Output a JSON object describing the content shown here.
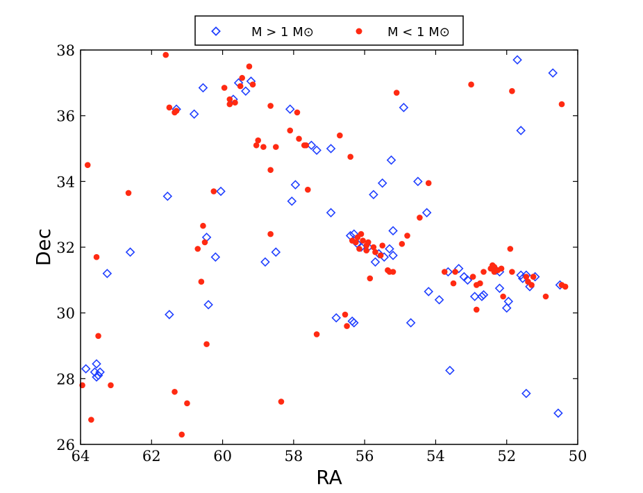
{
  "chart_data": {
    "type": "scatter",
    "xlabel": "RA",
    "ylabel": "Dec",
    "xlim": [
      64,
      50
    ],
    "ylim": [
      26,
      38
    ],
    "xticks": [
      64,
      62,
      60,
      58,
      56,
      54,
      52,
      50
    ],
    "yticks": [
      26,
      28,
      30,
      32,
      34,
      36,
      38
    ],
    "grid": false,
    "legend_position": "top-center, above plot",
    "series": [
      {
        "name": "M > 1 M⊙",
        "marker": "diamond-open",
        "color": "#1f3fff",
        "points": [
          [
            63.85,
            28.3
          ],
          [
            63.6,
            28.2
          ],
          [
            63.55,
            28.05
          ],
          [
            63.5,
            28.1
          ],
          [
            63.45,
            28.2
          ],
          [
            63.55,
            28.45
          ],
          [
            63.25,
            31.2
          ],
          [
            62.6,
            31.85
          ],
          [
            61.55,
            33.55
          ],
          [
            61.5,
            29.95
          ],
          [
            61.3,
            36.2
          ],
          [
            60.8,
            36.05
          ],
          [
            60.55,
            36.85
          ],
          [
            60.45,
            32.3
          ],
          [
            60.4,
            30.25
          ],
          [
            60.2,
            31.7
          ],
          [
            60.05,
            33.7
          ],
          [
            59.7,
            36.5
          ],
          [
            59.55,
            37.0
          ],
          [
            59.35,
            36.75
          ],
          [
            59.2,
            37.05
          ],
          [
            58.8,
            31.55
          ],
          [
            58.5,
            31.85
          ],
          [
            58.1,
            36.2
          ],
          [
            58.05,
            33.4
          ],
          [
            57.95,
            33.9
          ],
          [
            57.5,
            35.1
          ],
          [
            57.35,
            34.95
          ],
          [
            56.95,
            35.0
          ],
          [
            56.95,
            33.05
          ],
          [
            56.8,
            29.85
          ],
          [
            56.4,
            32.35
          ],
          [
            56.3,
            32.4
          ],
          [
            56.35,
            29.75
          ],
          [
            56.3,
            29.7
          ],
          [
            56.2,
            32.1
          ],
          [
            56.1,
            32.0
          ],
          [
            55.9,
            32.0
          ],
          [
            55.75,
            33.6
          ],
          [
            55.7,
            31.55
          ],
          [
            55.6,
            31.8
          ],
          [
            55.5,
            33.95
          ],
          [
            55.45,
            31.7
          ],
          [
            55.3,
            31.95
          ],
          [
            55.25,
            34.65
          ],
          [
            55.2,
            32.5
          ],
          [
            55.2,
            31.75
          ],
          [
            54.9,
            36.25
          ],
          [
            54.7,
            29.7
          ],
          [
            54.5,
            34.0
          ],
          [
            54.25,
            33.05
          ],
          [
            54.2,
            30.65
          ],
          [
            53.9,
            30.4
          ],
          [
            53.65,
            31.25
          ],
          [
            53.6,
            28.25
          ],
          [
            53.35,
            31.35
          ],
          [
            53.2,
            31.1
          ],
          [
            53.1,
            31.0
          ],
          [
            52.9,
            30.5
          ],
          [
            52.7,
            30.5
          ],
          [
            52.65,
            30.55
          ],
          [
            52.3,
            31.3
          ],
          [
            52.2,
            30.75
          ],
          [
            52.2,
            31.25
          ],
          [
            52.0,
            30.15
          ],
          [
            51.95,
            30.35
          ],
          [
            51.7,
            37.7
          ],
          [
            51.6,
            35.55
          ],
          [
            51.6,
            31.15
          ],
          [
            51.55,
            31.05
          ],
          [
            51.45,
            31.15
          ],
          [
            51.45,
            27.55
          ],
          [
            51.35,
            30.8
          ],
          [
            51.2,
            31.1
          ],
          [
            50.7,
            37.3
          ],
          [
            50.55,
            26.95
          ],
          [
            50.5,
            30.85
          ]
        ]
      },
      {
        "name": "M < 1 M⊙",
        "marker": "circle-filled",
        "color": "#ff2a12",
        "points": [
          [
            63.95,
            27.8
          ],
          [
            63.8,
            34.5
          ],
          [
            63.7,
            26.75
          ],
          [
            63.55,
            31.7
          ],
          [
            63.5,
            29.3
          ],
          [
            63.15,
            27.8
          ],
          [
            62.65,
            33.65
          ],
          [
            61.6,
            37.85
          ],
          [
            61.5,
            36.25
          ],
          [
            61.35,
            36.1
          ],
          [
            61.3,
            36.15
          ],
          [
            61.35,
            27.6
          ],
          [
            61.15,
            26.3
          ],
          [
            61.0,
            27.25
          ],
          [
            60.7,
            31.95
          ],
          [
            60.6,
            30.95
          ],
          [
            60.55,
            32.65
          ],
          [
            60.5,
            32.15
          ],
          [
            60.45,
            29.05
          ],
          [
            60.25,
            33.7
          ],
          [
            59.95,
            36.85
          ],
          [
            59.8,
            36.35
          ],
          [
            59.8,
            36.5
          ],
          [
            59.65,
            36.4
          ],
          [
            59.5,
            36.9
          ],
          [
            59.45,
            37.15
          ],
          [
            59.25,
            37.5
          ],
          [
            59.15,
            36.95
          ],
          [
            59.05,
            35.1
          ],
          [
            59.0,
            35.25
          ],
          [
            58.85,
            35.05
          ],
          [
            58.65,
            36.3
          ],
          [
            58.65,
            34.35
          ],
          [
            58.65,
            32.4
          ],
          [
            58.5,
            35.05
          ],
          [
            58.35,
            27.3
          ],
          [
            58.1,
            35.55
          ],
          [
            57.9,
            36.1
          ],
          [
            57.85,
            35.3
          ],
          [
            57.7,
            35.1
          ],
          [
            57.65,
            35.1
          ],
          [
            57.6,
            33.75
          ],
          [
            57.35,
            29.35
          ],
          [
            56.7,
            35.4
          ],
          [
            56.55,
            29.95
          ],
          [
            56.5,
            29.6
          ],
          [
            56.4,
            34.75
          ],
          [
            56.35,
            32.2
          ],
          [
            56.25,
            32.15
          ],
          [
            56.2,
            32.3
          ],
          [
            56.15,
            31.95
          ],
          [
            56.1,
            32.4
          ],
          [
            56.05,
            32.2
          ],
          [
            55.95,
            32.05
          ],
          [
            55.9,
            32.15
          ],
          [
            55.95,
            31.9
          ],
          [
            55.85,
            31.05
          ],
          [
            55.75,
            32.0
          ],
          [
            55.7,
            31.85
          ],
          [
            55.55,
            31.75
          ],
          [
            55.5,
            32.05
          ],
          [
            55.35,
            31.3
          ],
          [
            55.3,
            31.25
          ],
          [
            55.2,
            31.25
          ],
          [
            55.1,
            36.7
          ],
          [
            54.95,
            32.1
          ],
          [
            54.8,
            32.35
          ],
          [
            54.45,
            32.9
          ],
          [
            54.2,
            33.95
          ],
          [
            53.75,
            31.25
          ],
          [
            53.5,
            30.9
          ],
          [
            53.45,
            31.25
          ],
          [
            53.0,
            36.95
          ],
          [
            52.95,
            31.1
          ],
          [
            52.85,
            30.85
          ],
          [
            52.85,
            30.1
          ],
          [
            52.75,
            30.9
          ],
          [
            52.65,
            31.25
          ],
          [
            52.45,
            31.35
          ],
          [
            52.4,
            31.45
          ],
          [
            52.35,
            31.4
          ],
          [
            52.35,
            31.25
          ],
          [
            52.25,
            31.3
          ],
          [
            52.15,
            31.35
          ],
          [
            52.1,
            30.5
          ],
          [
            51.9,
            31.95
          ],
          [
            51.85,
            36.75
          ],
          [
            51.85,
            31.25
          ],
          [
            51.45,
            31.1
          ],
          [
            51.4,
            30.95
          ],
          [
            51.3,
            30.85
          ],
          [
            51.25,
            31.1
          ],
          [
            50.9,
            30.5
          ],
          [
            50.45,
            30.85
          ],
          [
            50.45,
            36.35
          ],
          [
            50.35,
            30.8
          ]
        ]
      }
    ]
  }
}
